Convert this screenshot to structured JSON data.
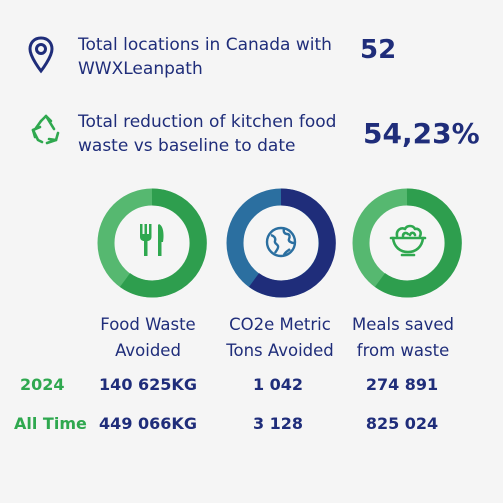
{
  "stats": [
    {
      "label_line1": "Total locations in Canada with",
      "label_line2": "WWXLeanpath",
      "value": "52",
      "icon": "map-pin-icon"
    },
    {
      "label_line1": "Total reduction of kitchen food",
      "label_line2": "waste vs baseline to date",
      "value": "54,23%",
      "icon": "recycle-icon"
    }
  ],
  "metrics": [
    {
      "label_line1": "Food Waste",
      "label_line2": "Avoided",
      "icon": "fork-knife-icon",
      "primary": "#2e9e4e",
      "secondary": "#56b870"
    },
    {
      "label_line1": "CO2e Metric",
      "label_line2": "Tons Avoided",
      "icon": "globe-icon",
      "primary": "#1f2d7a",
      "secondary": "#2b6fa0"
    },
    {
      "label_line1": "Meals saved",
      "label_line2": "from waste",
      "icon": "salad-bowl-icon",
      "primary": "#2e9e4e",
      "secondary": "#56b870"
    }
  ],
  "rows": [
    {
      "label": "2024",
      "values": [
        "140 625KG",
        "1 042",
        "274 891"
      ]
    },
    {
      "label": "All Time",
      "values": [
        "449 066KG",
        "3 128",
        "825 024"
      ]
    }
  ],
  "colors": {
    "navy": "#1f2d7a",
    "green": "#2fa84f",
    "background": "#f5f5f5"
  }
}
